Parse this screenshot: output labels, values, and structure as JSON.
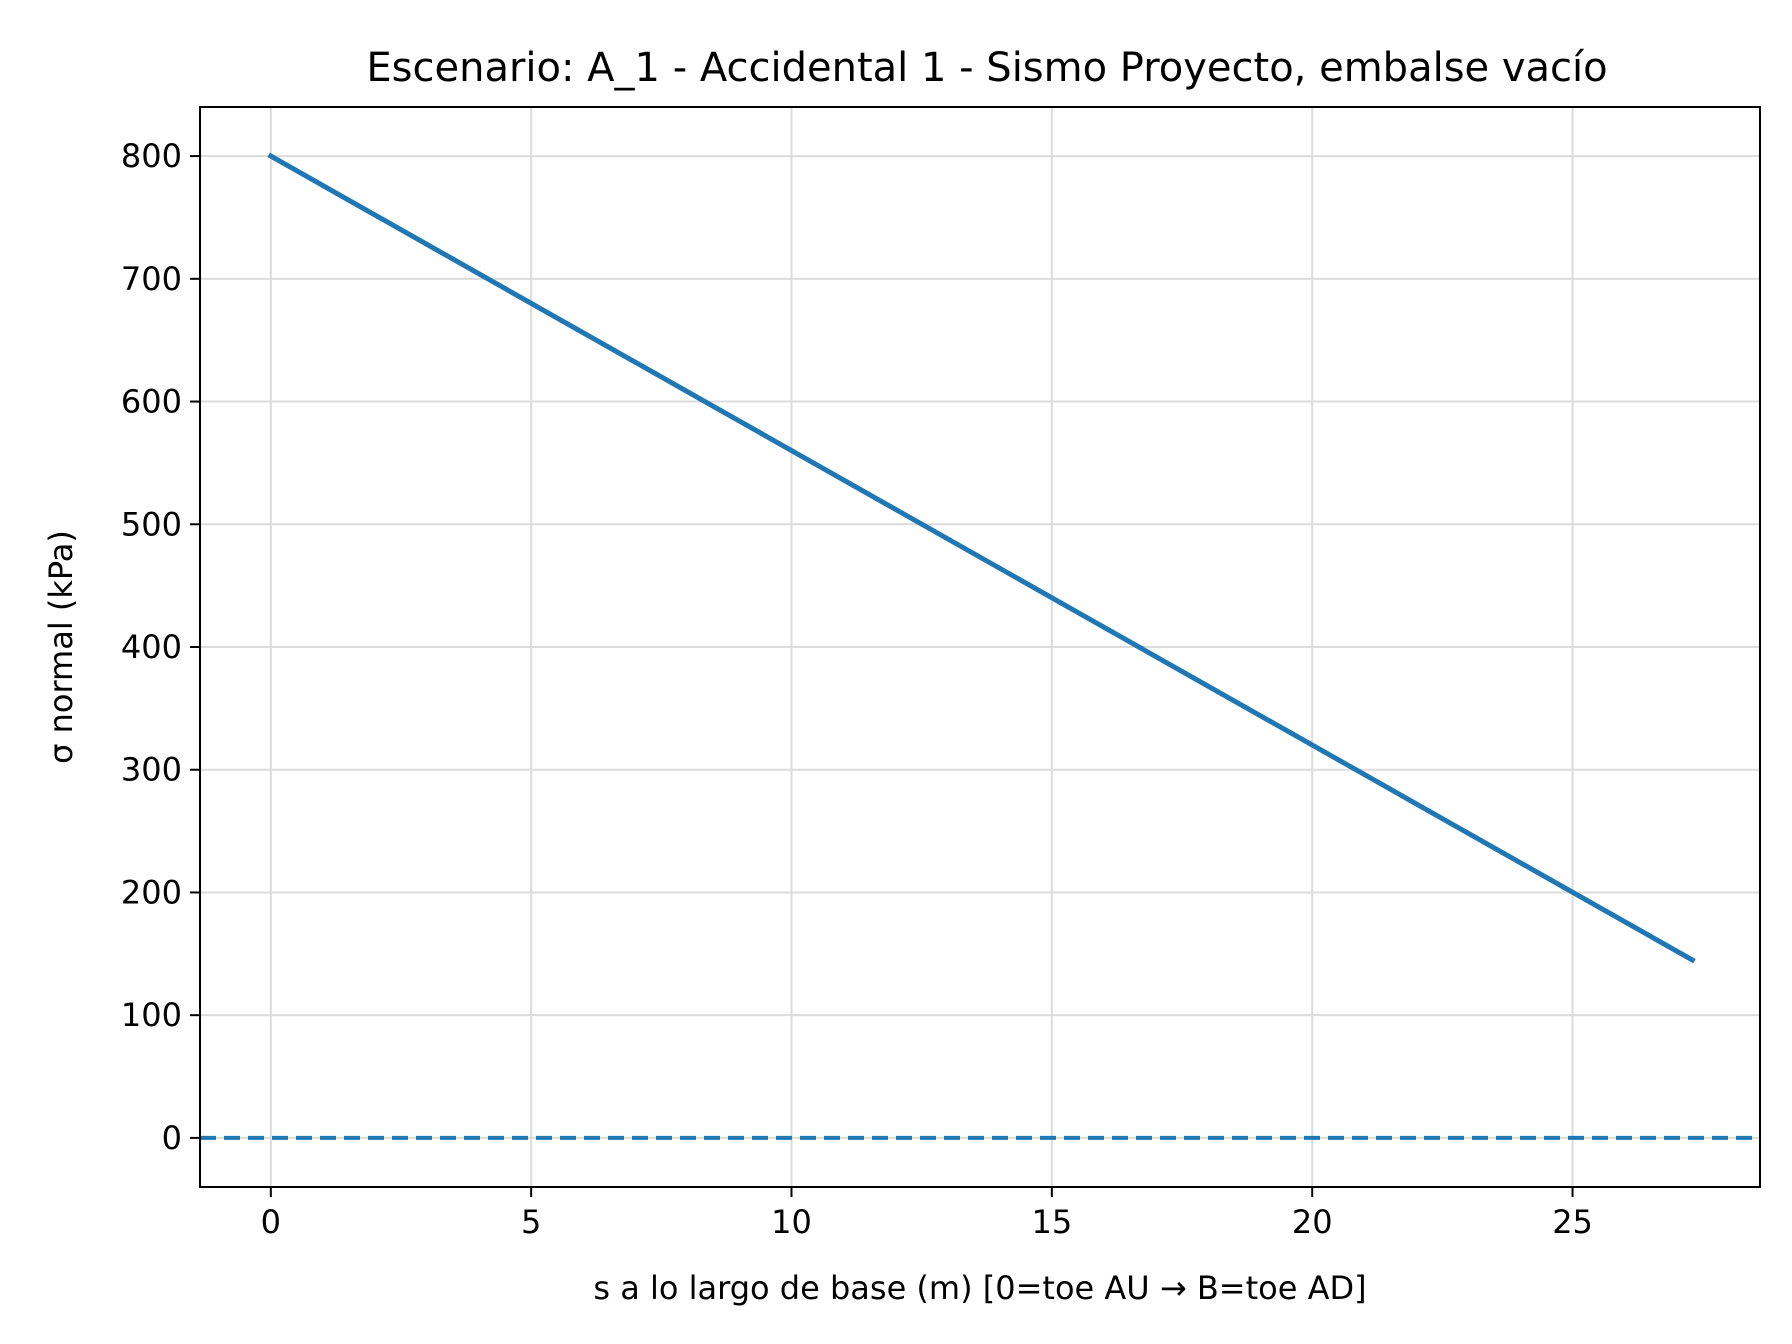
{
  "chart_data": {
    "type": "line",
    "title": "Escenario: A_1 - Accidental 1 - Sismo Proyecto, embalse vacío",
    "xlabel": "s a lo largo de base (m)  [0=toe AU → B=toe AD]",
    "ylabel": "σ normal (kPa)",
    "xlim": [
      -1.36,
      28.6
    ],
    "ylim": [
      -40,
      840
    ],
    "xticks": [
      0,
      5,
      10,
      15,
      20,
      25
    ],
    "yticks": [
      0,
      100,
      200,
      300,
      400,
      500,
      600,
      700,
      800
    ],
    "grid": true,
    "series": [
      {
        "x": [
          0,
          27.3
        ],
        "values": [
          800,
          145
        ],
        "color": "#1f77b4",
        "style": "solid"
      }
    ],
    "reference_lines": [
      {
        "axis": "y",
        "value": 0,
        "color": "#1f77b4",
        "style": "dashed"
      }
    ]
  }
}
